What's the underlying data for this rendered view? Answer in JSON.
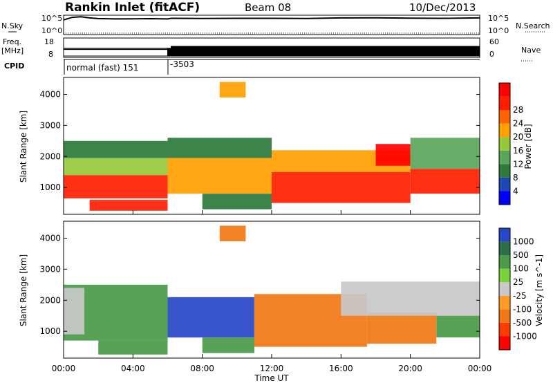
{
  "header": {
    "station": "Rankin Inlet (fitACF)",
    "beam": "Beam 08",
    "date": "10/Dec/2013"
  },
  "top_panels": {
    "nsky_label": "N.Sky",
    "nsearch_label": "N.Search",
    "counts_ticks": [
      "10^5",
      "10^0"
    ],
    "freq_label": "Freq.",
    "freq_unit": "[MHz]",
    "freq_ticks": [
      "18",
      "8"
    ],
    "nave_label": "Nave",
    "nave_ticks": [
      "60",
      "0"
    ],
    "cpid_label": "CPID",
    "cpid_segments": [
      {
        "label": "normal (fast) 151",
        "start_hour": 0,
        "end_hour": 6
      },
      {
        "label": "-3503",
        "start_hour": 6,
        "end_hour": 24
      }
    ]
  },
  "colors": {
    "power": [
      "#0000ff",
      "#1e46b4",
      "#2d7a3c",
      "#5aa55a",
      "#96c83c",
      "#ffa000",
      "#ff6400",
      "#ff1e00",
      "#ff0000"
    ],
    "velocity": [
      "#2846c8",
      "#2d6e46",
      "#4a9a4a",
      "#78d23c",
      "#c8c8c8",
      "#ff9a28",
      "#f07814",
      "#ff3c00",
      "#ff0000"
    ]
  },
  "chart_data": [
    {
      "type": "line",
      "title": "",
      "series": [
        {
          "name": "N.Sky",
          "x": [
            0.0,
            0.5,
            1.0,
            1.5,
            2.0,
            3.0,
            4.0,
            5.0,
            6.0,
            6.2,
            8.0,
            10.0,
            12.0,
            14.0,
            16.0,
            18.0,
            20.0,
            22.0,
            24.0
          ],
          "values": [
            10000,
            60000,
            90000,
            40000,
            25000,
            20000,
            22000,
            24000,
            20000,
            30000,
            28000,
            30000,
            30000,
            28000,
            40000,
            45000,
            35000,
            30000,
            40000
          ]
        },
        {
          "name": "N.Search",
          "x": [
            0.0,
            6.0,
            6.2,
            12.0,
            24.0
          ],
          "values": [
            1,
            1,
            1,
            1,
            1
          ]
        }
      ],
      "ylim": [
        1,
        100000
      ]
    },
    {
      "type": "line",
      "series": [
        {
          "name": "Freq.",
          "x": [
            0.0,
            6.0,
            6.2,
            24.0
          ],
          "values": [
            12,
            12,
            12,
            12
          ]
        },
        {
          "name": "Nave",
          "x": [
            0.0,
            6.0,
            6.2,
            24.0
          ],
          "values": [
            28,
            28,
            35,
            35
          ]
        }
      ],
      "ylim": [
        8,
        18
      ]
    },
    {
      "type": "heatmap",
      "title": "Power",
      "xlabel": "Time UT",
      "ylabel": "Slant Range [km]",
      "x_ticks": [
        "00:00",
        "04:00",
        "08:00",
        "12:00",
        "16:00",
        "20:00",
        "00:00"
      ],
      "xlim": [
        0,
        24
      ],
      "y_ticks": [
        1000,
        2000,
        3000,
        4000
      ],
      "ylim": [
        180,
        4500
      ],
      "colorbar_label": "Power [dB]",
      "colorbar_ticks": [
        4,
        8,
        12,
        16,
        20,
        24,
        28
      ],
      "regions": [
        {
          "t0": 0.0,
          "t1": 6.0,
          "r0": 650,
          "r1": 1400,
          "value": 28
        },
        {
          "t0": 0.0,
          "t1": 6.0,
          "r0": 1400,
          "r1": 1950,
          "value": 16
        },
        {
          "t0": 0.0,
          "t1": 6.0,
          "r0": 1950,
          "r1": 2500,
          "value": 8
        },
        {
          "t0": 1.5,
          "t1": 6.0,
          "r0": 250,
          "r1": 600,
          "value": 26
        },
        {
          "t0": 6.0,
          "t1": 12.0,
          "r0": 800,
          "r1": 1950,
          "value": 20
        },
        {
          "t0": 6.0,
          "t1": 12.0,
          "r0": 1950,
          "r1": 2600,
          "value": 8
        },
        {
          "t0": 8.0,
          "t1": 12.0,
          "r0": 300,
          "r1": 800,
          "value": 6
        },
        {
          "t0": 12.0,
          "t1": 20.0,
          "r0": 500,
          "r1": 1500,
          "value": 28
        },
        {
          "t0": 12.0,
          "t1": 20.0,
          "r0": 1500,
          "r1": 2200,
          "value": 20
        },
        {
          "t0": 18.0,
          "t1": 20.0,
          "r0": 1700,
          "r1": 2400,
          "value": 30
        },
        {
          "t0": 20.0,
          "t1": 24.0,
          "r0": 800,
          "r1": 1600,
          "value": 26
        },
        {
          "t0": 20.0,
          "t1": 24.0,
          "r0": 1600,
          "r1": 2600,
          "value": 12
        },
        {
          "t0": 9.0,
          "t1": 10.5,
          "r0": 3900,
          "r1": 4400,
          "value": 18
        }
      ]
    },
    {
      "type": "heatmap",
      "title": "Velocity",
      "xlabel": "Time UT",
      "ylabel": "Slant Range [km]",
      "x_ticks": [
        "00:00",
        "04:00",
        "08:00",
        "12:00",
        "16:00",
        "20:00",
        "00:00"
      ],
      "xlim": [
        0,
        24
      ],
      "y_ticks": [
        1000,
        2000,
        3000,
        4000
      ],
      "ylim": [
        180,
        4500
      ],
      "colorbar_label": "Velocity [m s^-1]",
      "colorbar_ticks": [
        "1000",
        "500",
        "100",
        "25",
        "-25",
        "-100",
        "-500",
        "-1000"
      ],
      "regions": [
        {
          "t0": 0.0,
          "t1": 6.0,
          "r0": 700,
          "r1": 2500,
          "value": 150
        },
        {
          "t0": 0.0,
          "t1": 1.2,
          "r0": 900,
          "r1": 2400,
          "value": 0
        },
        {
          "t0": 2.0,
          "t1": 6.0,
          "r0": 250,
          "r1": 700,
          "value": 150
        },
        {
          "t0": 6.0,
          "t1": 11.0,
          "r0": 800,
          "r1": 2100,
          "value": 1000
        },
        {
          "t0": 8.0,
          "t1": 11.0,
          "r0": 300,
          "r1": 800,
          "value": 150
        },
        {
          "t0": 11.0,
          "t1": 17.5,
          "r0": 500,
          "r1": 2200,
          "value": -300
        },
        {
          "t0": 17.5,
          "t1": 21.5,
          "r0": 600,
          "r1": 1600,
          "value": -300
        },
        {
          "t0": 16.0,
          "t1": 24.0,
          "r0": 1500,
          "r1": 2600,
          "value": 0
        },
        {
          "t0": 21.5,
          "t1": 24.0,
          "r0": 800,
          "r1": 1500,
          "value": 150
        },
        {
          "t0": 9.0,
          "t1": 10.5,
          "r0": 3900,
          "r1": 4400,
          "value": -300
        }
      ]
    }
  ]
}
